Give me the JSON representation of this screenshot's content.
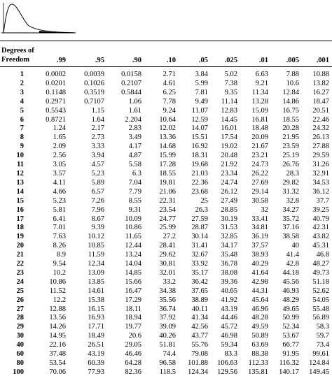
{
  "header": {
    "df_label_line1": "Degrees of",
    "df_label_line2": "Freedom",
    "columns": [
      ".99",
      ".95",
      ".90",
      ".10",
      ".05",
      ".025",
      ".01",
      ".005",
      ".001"
    ]
  },
  "rows": [
    {
      "df": "1",
      "values": [
        "0.0002",
        "0.0039",
        "0.0158",
        "2.71",
        "3.84",
        "5.02",
        "6.63",
        "7.88",
        "10.88"
      ]
    },
    {
      "df": "2",
      "values": [
        "0.0201",
        "0.1026",
        "0.2107",
        "4.61",
        "5.99",
        "7.38",
        "9.21",
        "10.6",
        "13.82"
      ]
    },
    {
      "df": "3",
      "values": [
        "0.1148",
        "0.3519",
        "0.5844",
        "6.25",
        "7.81",
        "9.35",
        "11.34",
        "12.84",
        "16.27"
      ]
    },
    {
      "df": "4",
      "values": [
        "0.2971",
        "0.7107",
        "1.06",
        "7.78",
        "9.49",
        "11.14",
        "13.28",
        "14.86",
        "18.47"
      ]
    },
    {
      "df": "5",
      "values": [
        "0.5543",
        "1.15",
        "1.61",
        "9.24",
        "11.07",
        "12.83",
        "15.09",
        "16.75",
        "20.51"
      ]
    },
    {
      "df": "6",
      "values": [
        "0.8721",
        "1.64",
        "2.204",
        "10.64",
        "12.59",
        "14.45",
        "16.81",
        "18.55",
        "22.46"
      ]
    },
    {
      "df": "7",
      "values": [
        "1.24",
        "2.17",
        "2.83",
        "12.02",
        "14.07",
        "16.01",
        "18.48",
        "20.28",
        "24.32"
      ]
    },
    {
      "df": "8",
      "values": [
        "1.65",
        "2.73",
        "3.49",
        "13.36",
        "15.51",
        "17.54",
        "20.09",
        "21.95",
        "26.13"
      ]
    },
    {
      "df": "9",
      "values": [
        "2.09",
        "3.33",
        "4.17",
        "14.68",
        "16.92",
        "19.02",
        "21.67",
        "23.59",
        "27.88"
      ]
    },
    {
      "df": "10",
      "values": [
        "2.56",
        "3.94",
        "4.87",
        "15.99",
        "18.31",
        "20.48",
        "23.21",
        "25.19",
        "29.59"
      ]
    },
    {
      "df": "11",
      "values": [
        "3.05",
        "4.57",
        "5.58",
        "17.28",
        "19.68",
        "21.92",
        "24.73",
        "26.76",
        "31.26"
      ]
    },
    {
      "df": "12",
      "values": [
        "3.57",
        "5.23",
        "6.3",
        "18.55",
        "21.03",
        "23.34",
        "26.22",
        "28.3",
        "32.91"
      ]
    },
    {
      "df": "13",
      "values": [
        "4.11",
        "5.89",
        "7.04",
        "19.81",
        "22.36",
        "24.74",
        "27.69",
        "29.82",
        "34.53"
      ]
    },
    {
      "df": "14",
      "values": [
        "4.66",
        "6.57",
        "7.79",
        "21.06",
        "23.68",
        "26.12",
        "29.14",
        "31.32",
        "36.12"
      ]
    },
    {
      "df": "15",
      "values": [
        "5.23",
        "7.26",
        "8.55",
        "22.31",
        "25",
        "27.49",
        "30.58",
        "32.8",
        "37.7"
      ]
    },
    {
      "df": "16",
      "values": [
        "5.81",
        "7.96",
        "9.31",
        "23.54",
        "26.3",
        "28.85",
        "32",
        "34.27",
        "39.25"
      ]
    },
    {
      "df": "17",
      "values": [
        "6.41",
        "8.67",
        "10.09",
        "24.77",
        "27.59",
        "30.19",
        "33.41",
        "35.72",
        "40.79"
      ]
    },
    {
      "df": "18",
      "values": [
        "7.01",
        "9.39",
        "10.86",
        "25.99",
        "28.87",
        "31.53",
        "34.81",
        "37.16",
        "42.31"
      ]
    },
    {
      "df": "19",
      "values": [
        "7.63",
        "10.12",
        "11.65",
        "27.2",
        "30.14",
        "32.85",
        "36.19",
        "38.58",
        "43.82"
      ]
    },
    {
      "df": "20",
      "values": [
        "8.26",
        "10.85",
        "12.44",
        "28.41",
        "31.41",
        "34.17",
        "37.57",
        "40",
        "45.31"
      ]
    },
    {
      "df": "21",
      "values": [
        "8.9",
        "11.59",
        "13.24",
        "29.62",
        "32.67",
        "35.48",
        "38.93",
        "41.4",
        "46.8"
      ]
    },
    {
      "df": "22",
      "values": [
        "9.54",
        "12.34",
        "14.04",
        "30.81",
        "33.92",
        "36.78",
        "40.29",
        "42.8",
        "48.27"
      ]
    },
    {
      "df": "23",
      "values": [
        "10.2",
        "13.09",
        "14.85",
        "32.01",
        "35.17",
        "38.08",
        "41.64",
        "44.18",
        "49.73"
      ]
    },
    {
      "df": "24",
      "values": [
        "10.86",
        "13.85",
        "15.66",
        "33.2",
        "36.42",
        "39.36",
        "42.98",
        "45.56",
        "51.18"
      ]
    },
    {
      "df": "25",
      "values": [
        "11.52",
        "14.61",
        "16.47",
        "34.38",
        "37.65",
        "40.65",
        "44.31",
        "46.93",
        "52.62"
      ]
    },
    {
      "df": "26",
      "values": [
        "12.2",
        "15.38",
        "17.29",
        "35.56",
        "38.89",
        "41.92",
        "45.64",
        "48.29",
        "54.05"
      ]
    },
    {
      "df": "27",
      "values": [
        "12.88",
        "16.15",
        "18.11",
        "36.74",
        "40.11",
        "43.19",
        "46.96",
        "49.65",
        "55.48"
      ]
    },
    {
      "df": "28",
      "values": [
        "13.56",
        "16.93",
        "18.94",
        "37.92",
        "41.34",
        "44.46",
        "48.28",
        "50.99",
        "56.89"
      ]
    },
    {
      "df": "29",
      "values": [
        "14.26",
        "17.71",
        "19.77",
        "39.09",
        "42.56",
        "45.72",
        "49.59",
        "52.34",
        "58.3"
      ]
    },
    {
      "df": "30",
      "values": [
        "14.95",
        "18.49",
        "20.6",
        "40.26",
        "43.77",
        "46.98",
        "50.89",
        "53.67",
        "59.7"
      ]
    },
    {
      "df": "40",
      "values": [
        "22.16",
        "26.51",
        "29.05",
        "51.81",
        "55.76",
        "59.34",
        "63.69",
        "66.77",
        "73.4"
      ]
    },
    {
      "df": "60",
      "values": [
        "37.48",
        "43.19",
        "46.46",
        "74.4",
        "79.08",
        "83.3",
        "88.38",
        "91.95",
        "99.61"
      ]
    },
    {
      "df": "80",
      "values": [
        "53.54",
        "60.39",
        "64.28",
        "96.58",
        "101.88",
        "106.63",
        "112.33",
        "116.32",
        "124.84"
      ]
    },
    {
      "df": "100",
      "values": [
        "70.06",
        "77.93",
        "82.36",
        "118.5",
        "124.34",
        "129.56",
        "135.81",
        "140.17",
        "149.45"
      ]
    }
  ]
}
